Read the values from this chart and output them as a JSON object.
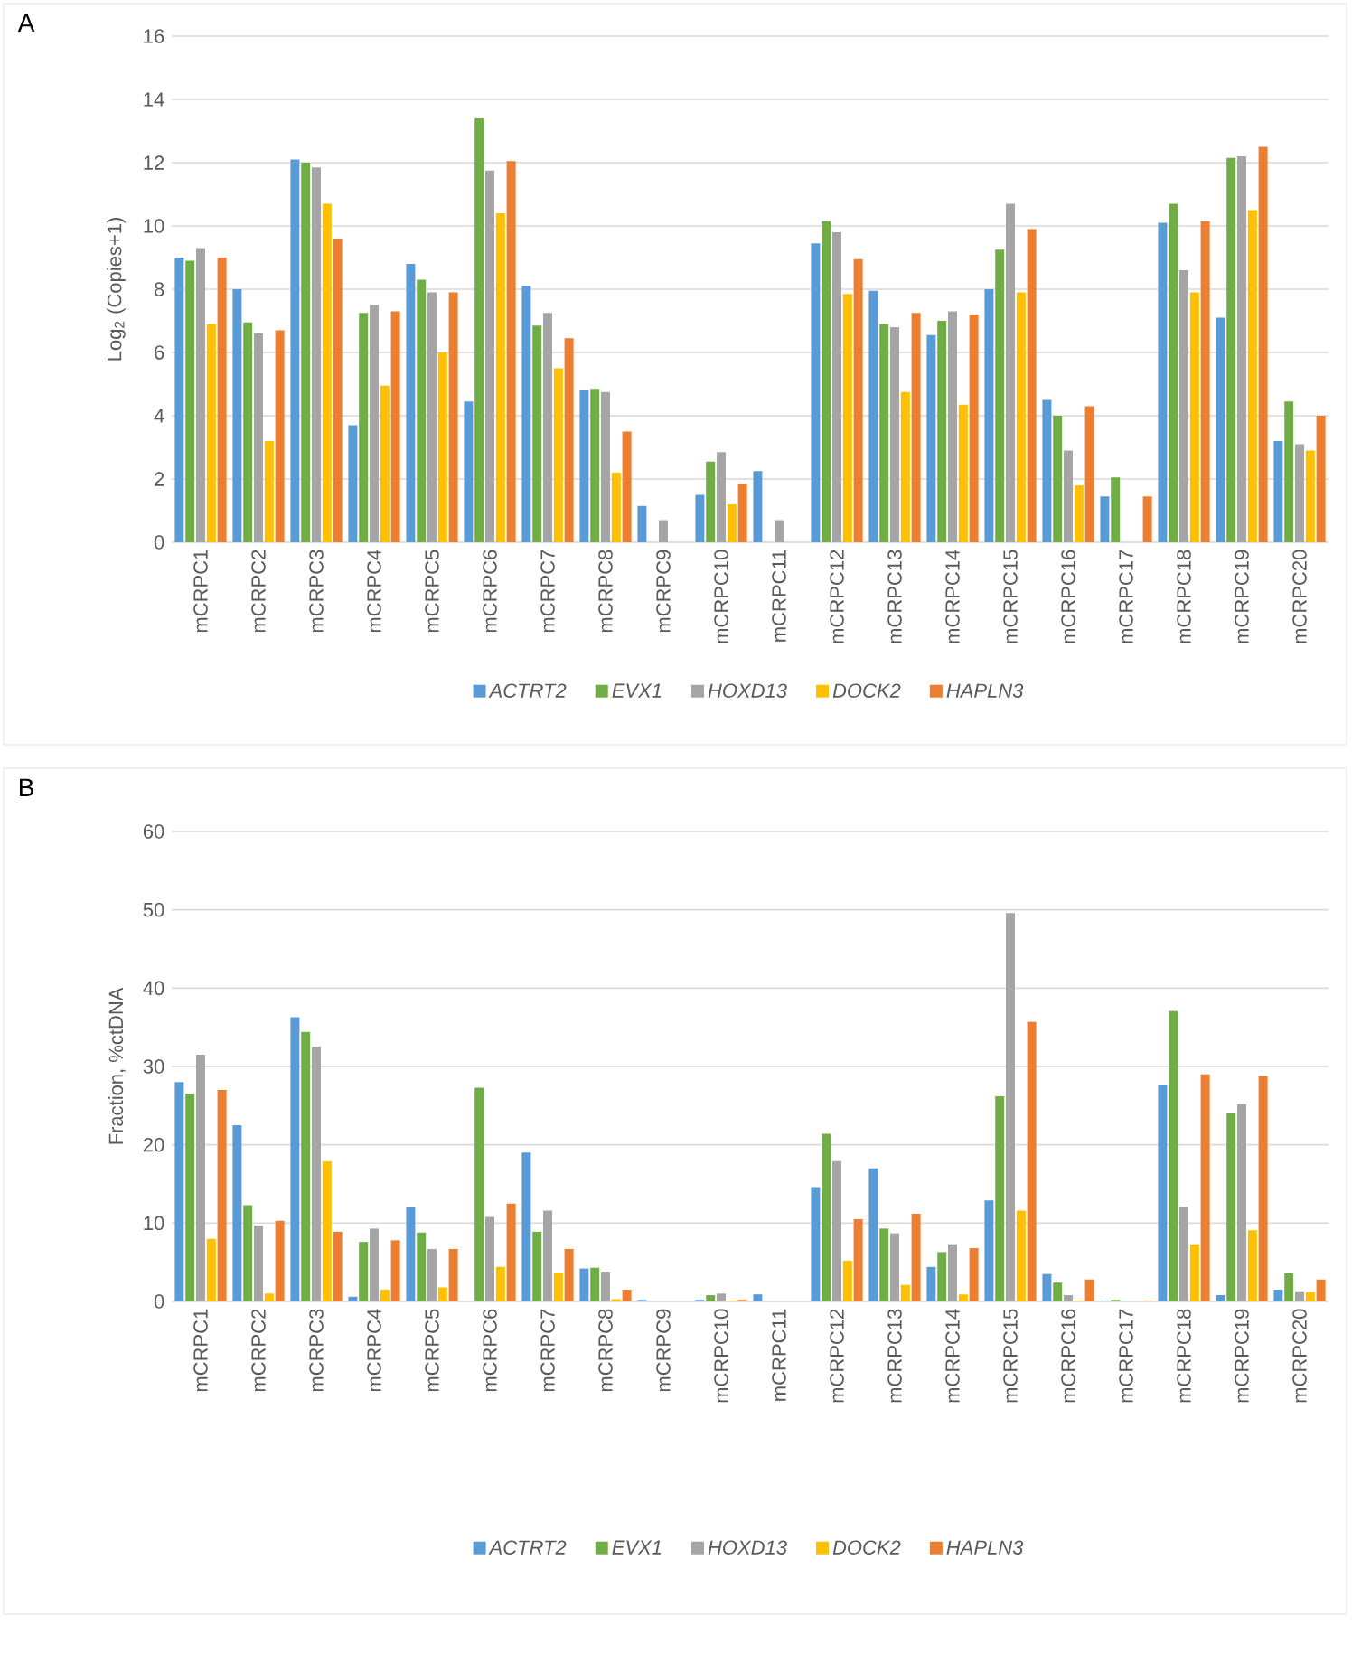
{
  "chart_data": [
    {
      "type": "bar",
      "annotations": [
        "A"
      ],
      "ylabel": "Log$_{2}$ (Copies+1)",
      "categories": [
        "mCRPC1",
        "mCRPC2",
        "mCRPC3",
        "mCRPC4",
        "mCRPC5",
        "mCRPC6",
        "mCRPC7",
        "mCRPC8",
        "mCRPC9",
        "mCRPC10",
        "mCRPC11",
        "mCRPC12",
        "mCRPC13",
        "mCRPC14",
        "mCRPC15",
        "mCRPC16",
        "mCRPC17",
        "mCRPC18",
        "mCRPC19",
        "mCRPC20"
      ],
      "series": [
        {
          "name": "ACTRT2",
          "color": "#5b9bd5",
          "values": [
            9.0,
            8.0,
            12.1,
            3.7,
            8.8,
            4.45,
            8.1,
            4.8,
            1.15,
            1.5,
            2.25,
            9.45,
            7.95,
            6.55,
            8.0,
            4.5,
            1.45,
            10.1,
            7.1,
            3.2
          ]
        },
        {
          "name": "EVX1",
          "color": "#70ad47",
          "values": [
            8.9,
            6.95,
            12.0,
            7.25,
            8.3,
            13.4,
            6.85,
            4.85,
            0,
            2.55,
            0,
            10.15,
            6.9,
            7.0,
            9.25,
            4.0,
            2.05,
            10.7,
            12.15,
            4.45
          ]
        },
        {
          "name": "HOXD13",
          "color": "#a5a5a5",
          "values": [
            9.3,
            6.6,
            11.85,
            7.5,
            7.9,
            11.75,
            7.25,
            4.75,
            0.7,
            2.85,
            0.7,
            9.8,
            6.8,
            7.3,
            10.7,
            2.9,
            0,
            8.6,
            12.2,
            3.1
          ]
        },
        {
          "name": "DOCK2",
          "color": "#ffc000",
          "values": [
            6.9,
            3.2,
            10.7,
            4.95,
            6.0,
            10.4,
            5.5,
            2.2,
            0,
            1.2,
            0,
            7.85,
            4.75,
            4.35,
            7.9,
            1.8,
            0,
            7.9,
            10.5,
            2.9
          ]
        },
        {
          "name": "HAPLN3",
          "color": "#ed7d31",
          "values": [
            9.0,
            6.7,
            9.6,
            7.3,
            7.9,
            12.05,
            6.45,
            3.5,
            0,
            1.85,
            0,
            8.95,
            7.25,
            7.2,
            9.9,
            4.3,
            1.45,
            10.15,
            12.5,
            4.0
          ]
        }
      ],
      "ylim": [
        0,
        16
      ],
      "yticks": [
        0,
        2,
        4,
        6,
        8,
        10,
        12,
        14,
        16
      ],
      "grid": "y",
      "legend": "bottom"
    },
    {
      "type": "bar",
      "annotations": [
        "B"
      ],
      "ylabel": "Fraction, %ctDNA",
      "categories": [
        "mCRPC1",
        "mCRPC2",
        "mCRPC3",
        "mCRPC4",
        "mCRPC5",
        "mCRPC6",
        "mCRPC7",
        "mCRPC8",
        "mCRPC9",
        "mCRPC10",
        "mCRPC11",
        "mCRPC12",
        "mCRPC13",
        "mCRPC14",
        "mCRPC15",
        "mCRPC16",
        "mCRPC17",
        "mCRPC18",
        "mCRPC19",
        "mCRPC20"
      ],
      "series": [
        {
          "name": "ACTRT2",
          "color": "#5b9bd5",
          "values": [
            28,
            22.5,
            36.3,
            0.6,
            12,
            0,
            19,
            4.2,
            0.2,
            0.2,
            0.9,
            14.6,
            17,
            4.4,
            12.9,
            3.5,
            0.1,
            27.7,
            0.8,
            1.5
          ]
        },
        {
          "name": "EVX1",
          "color": "#70ad47",
          "values": [
            26.5,
            12.3,
            34.4,
            7.6,
            8.8,
            27.3,
            8.9,
            4.3,
            0,
            0.8,
            0,
            21.4,
            9.3,
            6.3,
            26.2,
            2.4,
            0.2,
            37.1,
            24,
            3.6
          ]
        },
        {
          "name": "HOXD13",
          "color": "#a5a5a5",
          "values": [
            31.5,
            9.7,
            32.5,
            9.3,
            6.7,
            10.8,
            11.6,
            3.8,
            null,
            1.0,
            null,
            17.9,
            8.7,
            7.3,
            49.6,
            0.8,
            0,
            12.1,
            25.2,
            1.3
          ]
        },
        {
          "name": "DOCK2",
          "color": "#ffc000",
          "values": [
            8,
            1,
            17.9,
            1.5,
            1.8,
            4.4,
            3.7,
            0.3,
            0,
            0.1,
            0,
            5.2,
            2.1,
            0.9,
            11.6,
            0.1,
            0,
            7.3,
            9.1,
            1.2
          ]
        },
        {
          "name": "HAPLN3",
          "color": "#ed7d31",
          "values": [
            27,
            10.3,
            8.9,
            7.8,
            6.7,
            12.5,
            6.7,
            1.5,
            0,
            0.2,
            0,
            10.5,
            11.2,
            6.8,
            35.7,
            2.8,
            0.1,
            29,
            28.8,
            2.8
          ]
        }
      ],
      "ylim": [
        0,
        60
      ],
      "yticks": [
        0,
        10,
        20,
        30,
        40,
        50,
        60
      ],
      "grid": "y",
      "legend": "bottom"
    }
  ]
}
